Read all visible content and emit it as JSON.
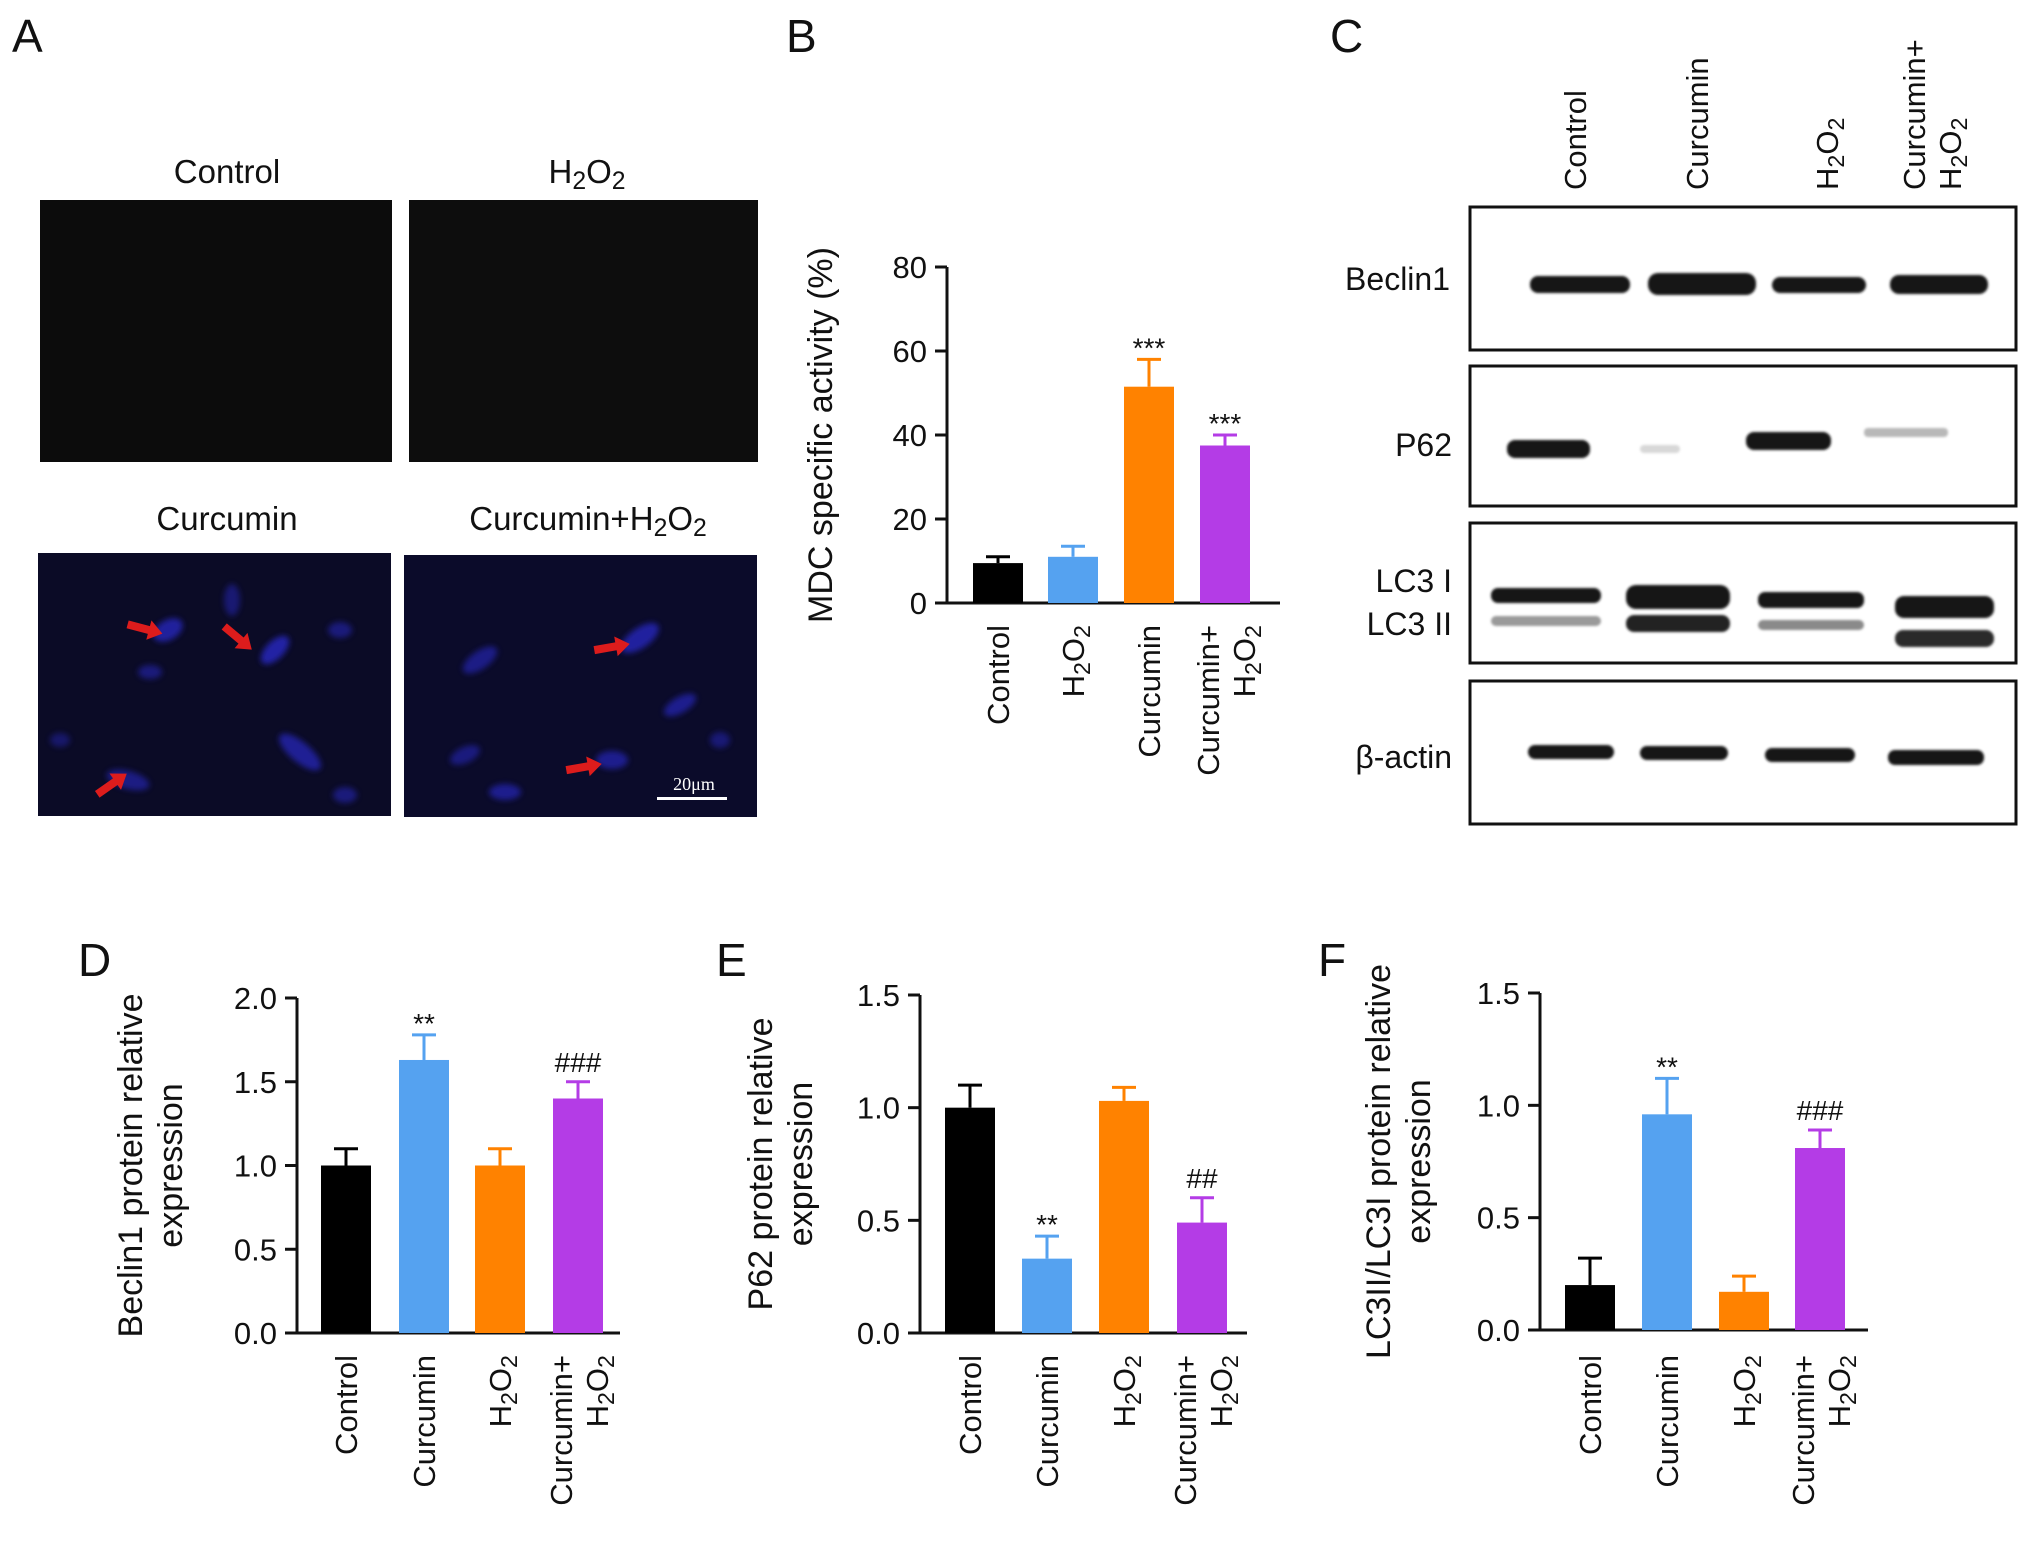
{
  "figure": {
    "panel_letters": [
      "A",
      "B",
      "C",
      "D",
      "E",
      "F"
    ]
  },
  "colors": {
    "Control": "#000000",
    "H2O2_B": "#55a2f0",
    "Curcumin_B": "#ff8200",
    "Combo": "#b43ce6",
    "Curcumin_DEF": "#55a2f0",
    "H2O2_DEF": "#ff8200",
    "arrow": "#dd1c1c",
    "fluor_bg": "#0b0b28"
  },
  "microscopy": {
    "titles": [
      "Control",
      "H2O2",
      "Curcumin",
      "Curcumin+H2O2"
    ],
    "scale_bar": "20μm"
  },
  "western_blot": {
    "lanes": [
      "Control",
      "Curcumin",
      "H2O2",
      "Curcumin+H2O2"
    ],
    "rows": [
      "Beclin1",
      "P62",
      "LC3 I",
      "LC3 II",
      "β-actin"
    ]
  },
  "chart_data": [
    {
      "panel": "B",
      "type": "bar",
      "ylabel": "MDC specific activity (%)",
      "ylim": [
        0,
        80
      ],
      "yticks": [
        "0",
        "20",
        "40",
        "60",
        "80"
      ],
      "categories": [
        "Control",
        "H2O2",
        "Curcumin",
        "Curcumin+H2O2"
      ],
      "values": [
        9.5,
        11,
        51.5,
        37.5
      ],
      "errors": [
        1.5,
        2.5,
        6.5,
        2.5
      ],
      "annotations": [
        "",
        "",
        "***",
        "***"
      ],
      "colors": [
        "#000000",
        "#55a2f0",
        "#ff8200",
        "#b43ce6"
      ]
    },
    {
      "panel": "D",
      "type": "bar",
      "ylabel": [
        "Beclin1 protein relative",
        "expression"
      ],
      "ylim": [
        0,
        2.0
      ],
      "yticks": [
        "0.0",
        "0.5",
        "1.0",
        "1.5",
        "2.0"
      ],
      "categories": [
        "Control",
        "Curcumin",
        "H2O2",
        "Curcumin+H2O2"
      ],
      "values": [
        1.0,
        1.63,
        1.0,
        1.4
      ],
      "errors": [
        0.1,
        0.15,
        0.1,
        0.1
      ],
      "annotations": [
        "",
        "**",
        "",
        "###"
      ],
      "colors": [
        "#000000",
        "#55a2f0",
        "#ff8200",
        "#b43ce6"
      ]
    },
    {
      "panel": "E",
      "type": "bar",
      "ylabel": [
        "P62 protein relative",
        "expression"
      ],
      "ylim": [
        0,
        1.5
      ],
      "yticks": [
        "0.0",
        "0.5",
        "1.0",
        "1.5"
      ],
      "categories": [
        "Control",
        "Curcumin",
        "H2O2",
        "Curcumin+H2O2"
      ],
      "values": [
        1.0,
        0.33,
        1.03,
        0.49
      ],
      "errors": [
        0.1,
        0.1,
        0.06,
        0.11
      ],
      "annotations": [
        "",
        "**",
        "",
        "##"
      ],
      "colors": [
        "#000000",
        "#55a2f0",
        "#ff8200",
        "#b43ce6"
      ]
    },
    {
      "panel": "F",
      "type": "bar",
      "ylabel": [
        "LC3II/LC3I protein relative",
        "expression"
      ],
      "ylim": [
        0,
        1.5
      ],
      "yticks": [
        "0.0",
        "0.5",
        "1.0",
        "1.5"
      ],
      "categories": [
        "Control",
        "Curcumin",
        "H2O2",
        "Curcumin+H2O2"
      ],
      "values": [
        0.2,
        0.96,
        0.17,
        0.81
      ],
      "errors": [
        0.12,
        0.16,
        0.07,
        0.08
      ],
      "annotations": [
        "",
        "**",
        "",
        "###"
      ],
      "colors": [
        "#000000",
        "#55a2f0",
        "#ff8200",
        "#b43ce6"
      ]
    }
  ]
}
